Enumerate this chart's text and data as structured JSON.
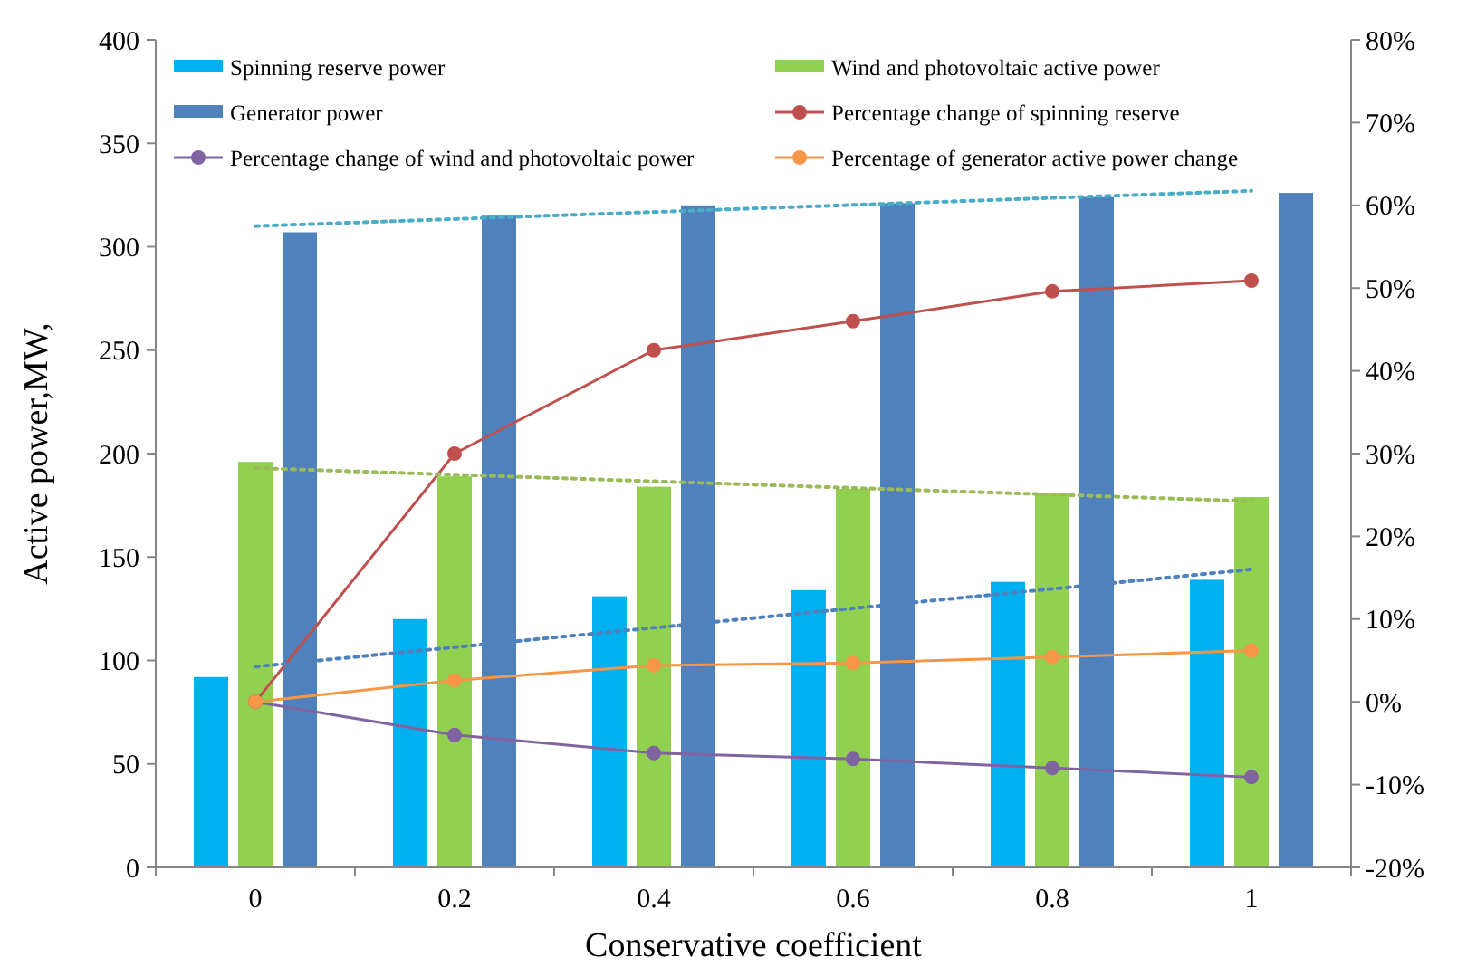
{
  "chart_data": {
    "type": "bar",
    "xlabel": "Conservative coefficient",
    "ylabel": "Active power,MW,",
    "categories": [
      "0",
      "0.2",
      "0.4",
      "0.6",
      "0.8",
      "1"
    ],
    "ylim": [
      0,
      400
    ],
    "yticks": [
      0,
      50,
      100,
      150,
      200,
      250,
      300,
      350,
      400
    ],
    "y2lim": [
      -20,
      80
    ],
    "y2ticks": [
      {
        "value": -20,
        "label": "-20%"
      },
      {
        "value": -10,
        "label": "-10%"
      },
      {
        "value": 0,
        "label": "0%"
      },
      {
        "value": 10,
        "label": "10%"
      },
      {
        "value": 20,
        "label": "20%"
      },
      {
        "value": 30,
        "label": "30%"
      },
      {
        "value": 40,
        "label": "40%"
      },
      {
        "value": 50,
        "label": "50%"
      },
      {
        "value": 60,
        "label": "60%"
      },
      {
        "value": 70,
        "label": "70%"
      },
      {
        "value": 80,
        "label": "80%"
      }
    ],
    "grid": false,
    "legend": "top",
    "marker": "circle",
    "line_style": "solid",
    "series": [
      {
        "name": "Spinning reserve power",
        "color": "#00b0f0",
        "values": [
          92,
          120,
          131,
          134,
          138,
          139
        ]
      },
      {
        "name": "Wind and photovoltaic active power",
        "color": "#92d050",
        "values": [
          196,
          189,
          184,
          183,
          181,
          179
        ]
      },
      {
        "name": "Generator power",
        "color": "#4f81bd",
        "values": [
          307,
          315,
          320,
          321,
          324,
          326
        ]
      },
      {
        "name": "Percentage change of spinning reserve",
        "type": "line",
        "axis": "y2",
        "color": "#c0504d",
        "values": [
          0,
          30,
          42.5,
          46,
          49.6,
          50.9
        ]
      },
      {
        "name": "Percentage change of wind and photovoltaic power",
        "type": "line",
        "axis": "y2",
        "color": "#8064a2",
        "values": [
          0,
          -4,
          -6.2,
          -6.9,
          -8,
          -9.1
        ]
      },
      {
        "name": "Percentage of generator active power change",
        "type": "line",
        "axis": "y2",
        "color": "#f79646",
        "values": [
          0,
          2.6,
          4.4,
          4.7,
          5.4,
          6.2
        ]
      },
      {
        "type": "line",
        "x": [
          "0",
          "1"
        ],
        "color": "#4bacc6",
        "marker": "none",
        "line_style": "dotted",
        "values": [
          310,
          327
        ]
      },
      {
        "type": "line",
        "x": [
          "0",
          "1"
        ],
        "color": "#9bbb59",
        "marker": "none",
        "line_style": "dotted",
        "values": [
          193,
          177
        ]
      },
      {
        "type": "line",
        "x": [
          "0",
          "1"
        ],
        "color": "#4f81bd",
        "marker": "none",
        "line_style": "dotted",
        "values": [
          97,
          144
        ]
      }
    ]
  }
}
